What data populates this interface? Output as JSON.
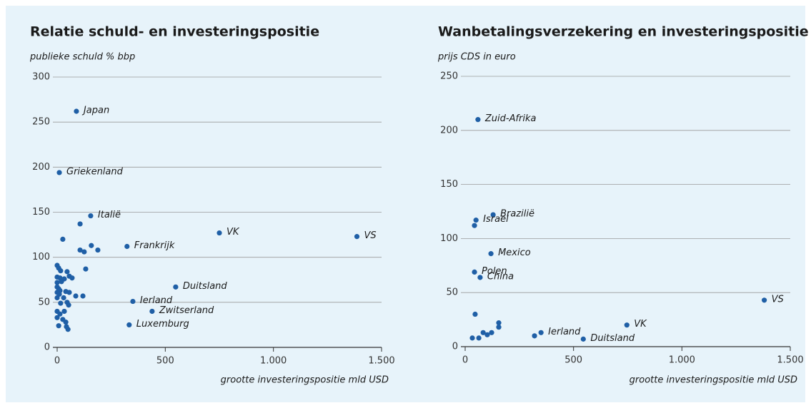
{
  "chart_data": [
    {
      "type": "scatter",
      "title": "Relatie schuld- en investeringspositie",
      "y_label": "publieke schuld % bbp",
      "x_label": "grootte investeringspositie mld USD",
      "color": "#1f5fa6",
      "grid": true,
      "xlim": [
        0,
        1500
      ],
      "xticks": [
        0,
        500,
        {
          "value": 1000,
          "label": "1.000"
        },
        {
          "value": 1500,
          "label": "1.500"
        }
      ],
      "ylim": [
        0,
        300
      ],
      "yticks": [
        0,
        50,
        100,
        150,
        200,
        250,
        300
      ],
      "series": [
        {
          "name": null,
          "x": [
            89,
            10,
            155,
            750,
            1386,
            323,
            548,
            350,
            439,
            333,
            106,
            26,
            106,
            125,
            158,
            188,
            132,
            0,
            7,
            16,
            46,
            0,
            13,
            33,
            56,
            69,
            0,
            20,
            0,
            7,
            13,
            40,
            56,
            86,
            119,
            0,
            10,
            0,
            30,
            46,
            53,
            16,
            0,
            13,
            33,
            0,
            26,
            40,
            7,
            43,
            50
          ],
          "values": [
            262,
            194,
            146,
            127,
            123,
            112,
            67,
            51,
            40,
            25,
            137,
            120,
            108,
            106,
            113,
            108,
            87,
            91,
            88,
            85,
            84,
            78,
            77,
            76,
            79,
            77,
            72,
            73,
            67,
            65,
            63,
            62,
            61,
            57,
            57,
            61,
            59,
            55,
            55,
            50,
            47,
            49,
            40,
            37,
            40,
            33,
            31,
            28,
            24,
            23,
            20
          ],
          "labels": [
            "Japan",
            "Griekenland",
            "Italië",
            "VK",
            "VS",
            "Frankrijk",
            "Duitsland",
            "Ierland",
            "Zwitserland",
            "Luxemburg",
            null,
            null,
            null,
            null,
            null,
            null,
            null,
            null,
            null,
            null,
            null,
            null,
            null,
            null,
            null,
            null,
            null,
            null,
            null,
            null,
            null,
            null,
            null,
            null,
            null,
            null,
            null,
            null,
            null,
            null,
            null,
            null,
            null,
            null,
            null,
            null,
            null,
            null,
            null,
            null,
            null
          ]
        }
      ]
    },
    {
      "type": "scatter",
      "title": "Wanbetalingsverzekering en investeringspositie",
      "y_label": "prijs CDS in euro",
      "x_label": "grootte investeringspositie mld USD",
      "color": "#1f5fa6",
      "grid": true,
      "xlim": [
        0,
        1500
      ],
      "xticks": [
        0,
        500,
        {
          "value": 1000,
          "label": "1.000"
        },
        {
          "value": 1500,
          "label": "1.500"
        }
      ],
      "ylim": [
        0,
        250
      ],
      "yticks": [
        0,
        50,
        100,
        150,
        200,
        250
      ],
      "series": [
        {
          "name": null,
          "x": [
            59,
            129,
            50,
            43,
            119,
            43,
            69,
            1380,
            746,
            350,
            545,
            46,
            155,
            155,
            83,
            122,
            102,
            33,
            63,
            320
          ],
          "values": [
            210,
            122,
            117,
            112,
            86,
            69,
            64,
            43,
            20,
            13,
            7,
            30,
            22,
            18,
            13,
            13,
            11,
            8,
            8,
            10
          ],
          "labels": [
            "Zuid-Afrika",
            "Brazilië",
            "Israel",
            null,
            "Mexico",
            "Polen",
            "China",
            "VS",
            "VK",
            "Ierland",
            "Duitsland",
            null,
            null,
            null,
            null,
            null,
            null,
            null,
            null,
            null
          ]
        }
      ]
    }
  ]
}
